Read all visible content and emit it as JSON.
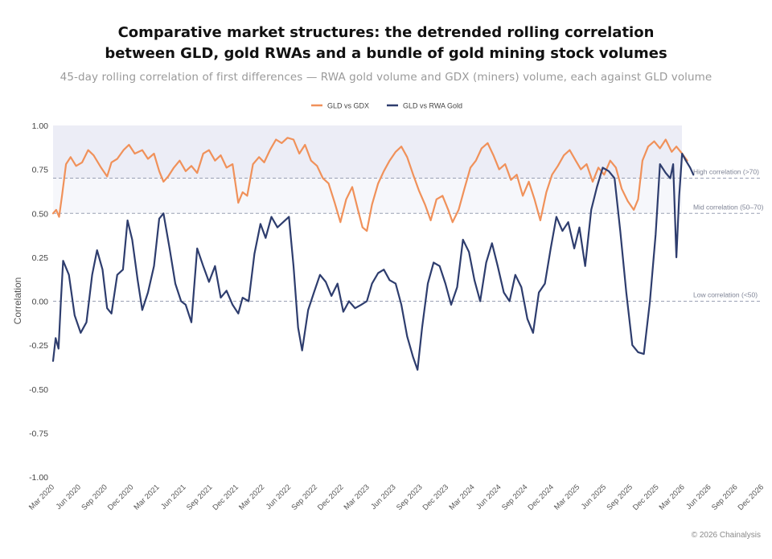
{
  "header": {
    "title": "Comparative market structures: the detrended rolling correlation between GLD, gold RWAs and a bundle of gold mining stock volumes",
    "subtitle": "45-day rolling correlation of first differences — RWA gold volume and GDX (miners) volume, each against GLD volume"
  },
  "footer": {
    "copyright": "© 2026 Chainalysis"
  },
  "colors": {
    "gdx": "#F0915A",
    "rwa": "#2E3D6E",
    "high_band": "#ECEDF6",
    "mid_band": "#F6F7FB",
    "ref_line": "#9AA0B4"
  },
  "chart_data": {
    "type": "line",
    "title": "Comparative market structures: the detrended rolling correlation between GLD, gold RWAs and a bundle of gold mining stock volumes",
    "subtitle": "45-day rolling correlation of first differences — RWA gold volume and GDX (miners) volume, each against GLD volume",
    "xlabel": "",
    "ylabel": "Correlation",
    "ylim": [
      -1.0,
      1.0
    ],
    "yticks": [
      -1.0,
      -0.75,
      -0.5,
      -0.25,
      0.0,
      0.25,
      0.5,
      0.75,
      1.0
    ],
    "ytick_labels": [
      "-1.00",
      "-0.75",
      "-0.50",
      "-0.25",
      "0.00",
      "0.25",
      "0.50",
      "0.75",
      "1.00"
    ],
    "xlim": [
      "2020-03-01",
      "2026-12-01"
    ],
    "xtick_labels": [
      "Mar 2020",
      "Jun 2020",
      "Sep 2020",
      "Dec 2020",
      "Mar 2021",
      "Jun 2021",
      "Sep 2021",
      "Dec 2021",
      "Mar 2022",
      "Jun 2022",
      "Sep 2022",
      "Dec 2022",
      "Mar 2023",
      "Jun 2023",
      "Sep 2023",
      "Dec 2023",
      "Mar 2024",
      "Jun 2024",
      "Sep 2024",
      "Dec 2024",
      "Mar 2025",
      "Jun 2025",
      "Sep 2025",
      "Dec 2025",
      "Mar 2026",
      "Jun 2026",
      "Sep 2026",
      "Dec 2026"
    ],
    "xtick_dates": [
      "2020-03-01",
      "2020-06-01",
      "2020-09-01",
      "2020-12-01",
      "2021-03-01",
      "2021-06-01",
      "2021-09-01",
      "2021-12-01",
      "2022-03-01",
      "2022-06-01",
      "2022-09-01",
      "2022-12-01",
      "2023-03-01",
      "2023-06-01",
      "2023-09-01",
      "2023-12-01",
      "2024-03-01",
      "2024-06-01",
      "2024-09-01",
      "2024-12-01",
      "2025-03-01",
      "2025-06-01",
      "2025-09-01",
      "2025-12-01",
      "2026-03-01",
      "2026-06-01",
      "2026-09-01",
      "2026-12-01"
    ],
    "legend_position": "top-center",
    "grid": false,
    "bands": [
      {
        "from": 0.7,
        "to": 1.0,
        "label": "High correlation (>70)"
      },
      {
        "from": 0.5,
        "to": 0.7,
        "label": "Mid correlation (50–70)"
      }
    ],
    "reference_lines": [
      {
        "y": 0.7,
        "label": "High correlation (>70)"
      },
      {
        "y": 0.5,
        "label": "Mid correlation (50–70)"
      },
      {
        "y": 0.0,
        "label": "Low correlation (<50)"
      }
    ],
    "series": [
      {
        "name": "GLD vs GDX",
        "color": "#F0915A",
        "points": [
          [
            "2020-03-01",
            0.5
          ],
          [
            "2020-03-12",
            0.52
          ],
          [
            "2020-03-22",
            0.48
          ],
          [
            "2020-04-01",
            0.6
          ],
          [
            "2020-04-15",
            0.78
          ],
          [
            "2020-05-01",
            0.82
          ],
          [
            "2020-05-20",
            0.77
          ],
          [
            "2020-06-10",
            0.79
          ],
          [
            "2020-07-01",
            0.86
          ],
          [
            "2020-07-20",
            0.83
          ],
          [
            "2020-08-15",
            0.76
          ],
          [
            "2020-09-05",
            0.71
          ],
          [
            "2020-09-20",
            0.79
          ],
          [
            "2020-10-10",
            0.81
          ],
          [
            "2020-11-01",
            0.86
          ],
          [
            "2020-11-20",
            0.89
          ],
          [
            "2020-12-10",
            0.84
          ],
          [
            "2021-01-05",
            0.86
          ],
          [
            "2021-01-25",
            0.81
          ],
          [
            "2021-02-15",
            0.84
          ],
          [
            "2021-03-05",
            0.74
          ],
          [
            "2021-03-20",
            0.68
          ],
          [
            "2021-04-05",
            0.71
          ],
          [
            "2021-04-25",
            0.76
          ],
          [
            "2021-05-15",
            0.8
          ],
          [
            "2021-06-05",
            0.74
          ],
          [
            "2021-06-25",
            0.77
          ],
          [
            "2021-07-15",
            0.73
          ],
          [
            "2021-08-05",
            0.84
          ],
          [
            "2021-08-25",
            0.86
          ],
          [
            "2021-09-15",
            0.8
          ],
          [
            "2021-10-05",
            0.83
          ],
          [
            "2021-10-25",
            0.76
          ],
          [
            "2021-11-15",
            0.78
          ],
          [
            "2021-12-05",
            0.56
          ],
          [
            "2021-12-20",
            0.62
          ],
          [
            "2022-01-05",
            0.6
          ],
          [
            "2022-01-25",
            0.78
          ],
          [
            "2022-02-15",
            0.82
          ],
          [
            "2022-03-05",
            0.79
          ],
          [
            "2022-03-25",
            0.86
          ],
          [
            "2022-04-15",
            0.92
          ],
          [
            "2022-05-05",
            0.9
          ],
          [
            "2022-05-25",
            0.93
          ],
          [
            "2022-06-15",
            0.92
          ],
          [
            "2022-07-05",
            0.84
          ],
          [
            "2022-07-25",
            0.89
          ],
          [
            "2022-08-15",
            0.8
          ],
          [
            "2022-09-05",
            0.77
          ],
          [
            "2022-09-25",
            0.7
          ],
          [
            "2022-10-15",
            0.67
          ],
          [
            "2022-11-05",
            0.56
          ],
          [
            "2022-11-25",
            0.45
          ],
          [
            "2022-12-15",
            0.58
          ],
          [
            "2023-01-05",
            0.65
          ],
          [
            "2023-01-25",
            0.52
          ],
          [
            "2023-02-10",
            0.42
          ],
          [
            "2023-02-25",
            0.4
          ],
          [
            "2023-03-15",
            0.55
          ],
          [
            "2023-04-05",
            0.67
          ],
          [
            "2023-04-25",
            0.74
          ],
          [
            "2023-05-15",
            0.8
          ],
          [
            "2023-06-05",
            0.85
          ],
          [
            "2023-06-25",
            0.88
          ],
          [
            "2023-07-15",
            0.82
          ],
          [
            "2023-08-05",
            0.72
          ],
          [
            "2023-08-25",
            0.63
          ],
          [
            "2023-09-15",
            0.55
          ],
          [
            "2023-10-05",
            0.46
          ],
          [
            "2023-10-25",
            0.58
          ],
          [
            "2023-11-15",
            0.6
          ],
          [
            "2023-12-05",
            0.52
          ],
          [
            "2023-12-20",
            0.45
          ],
          [
            "2024-01-10",
            0.52
          ],
          [
            "2024-01-30",
            0.64
          ],
          [
            "2024-02-20",
            0.76
          ],
          [
            "2024-03-10",
            0.8
          ],
          [
            "2024-03-30",
            0.87
          ],
          [
            "2024-04-20",
            0.9
          ],
          [
            "2024-05-10",
            0.83
          ],
          [
            "2024-05-30",
            0.75
          ],
          [
            "2024-06-20",
            0.78
          ],
          [
            "2024-07-10",
            0.69
          ],
          [
            "2024-07-30",
            0.72
          ],
          [
            "2024-08-20",
            0.6
          ],
          [
            "2024-09-10",
            0.68
          ],
          [
            "2024-09-30",
            0.58
          ],
          [
            "2024-10-20",
            0.46
          ],
          [
            "2024-11-10",
            0.62
          ],
          [
            "2024-11-30",
            0.72
          ],
          [
            "2024-12-20",
            0.77
          ],
          [
            "2025-01-10",
            0.83
          ],
          [
            "2025-01-30",
            0.86
          ],
          [
            "2025-02-20",
            0.8
          ],
          [
            "2025-03-10",
            0.75
          ],
          [
            "2025-03-30",
            0.78
          ],
          [
            "2025-04-20",
            0.68
          ],
          [
            "2025-05-10",
            0.76
          ],
          [
            "2025-05-30",
            0.72
          ],
          [
            "2025-06-20",
            0.8
          ],
          [
            "2025-07-10",
            0.76
          ],
          [
            "2025-07-30",
            0.64
          ],
          [
            "2025-08-20",
            0.57
          ],
          [
            "2025-09-10",
            0.52
          ],
          [
            "2025-09-25",
            0.58
          ],
          [
            "2025-10-10",
            0.8
          ],
          [
            "2025-10-30",
            0.88
          ],
          [
            "2025-11-20",
            0.91
          ],
          [
            "2025-12-10",
            0.87
          ],
          [
            "2025-12-30",
            0.92
          ],
          [
            "2026-01-20",
            0.85
          ],
          [
            "2026-02-05",
            0.88
          ],
          [
            "2026-02-25",
            0.84
          ],
          [
            "2026-03-15",
            0.8
          ]
        ]
      },
      {
        "name": "GLD vs RWA Gold",
        "color": "#2E3D6E",
        "points": [
          [
            "2020-03-01",
            -0.34
          ],
          [
            "2020-03-10",
            -0.21
          ],
          [
            "2020-03-20",
            -0.27
          ],
          [
            "2020-03-28",
            0.0
          ],
          [
            "2020-04-05",
            0.23
          ],
          [
            "2020-04-25",
            0.15
          ],
          [
            "2020-05-15",
            -0.08
          ],
          [
            "2020-06-05",
            -0.18
          ],
          [
            "2020-06-25",
            -0.12
          ],
          [
            "2020-07-15",
            0.15
          ],
          [
            "2020-08-01",
            0.29
          ],
          [
            "2020-08-20",
            0.18
          ],
          [
            "2020-09-05",
            -0.04
          ],
          [
            "2020-09-20",
            -0.07
          ],
          [
            "2020-10-10",
            0.15
          ],
          [
            "2020-10-30",
            0.18
          ],
          [
            "2020-11-15",
            0.46
          ],
          [
            "2020-12-01",
            0.35
          ],
          [
            "2020-12-20",
            0.12
          ],
          [
            "2021-01-05",
            -0.05
          ],
          [
            "2021-01-25",
            0.05
          ],
          [
            "2021-02-15",
            0.2
          ],
          [
            "2021-03-05",
            0.47
          ],
          [
            "2021-03-20",
            0.5
          ],
          [
            "2021-04-10",
            0.3
          ],
          [
            "2021-04-30",
            0.1
          ],
          [
            "2021-05-20",
            0.0
          ],
          [
            "2021-06-05",
            -0.02
          ],
          [
            "2021-06-25",
            -0.12
          ],
          [
            "2021-07-15",
            0.3
          ],
          [
            "2021-08-05",
            0.2
          ],
          [
            "2021-08-25",
            0.11
          ],
          [
            "2021-09-15",
            0.2
          ],
          [
            "2021-10-05",
            0.02
          ],
          [
            "2021-10-25",
            0.06
          ],
          [
            "2021-11-15",
            -0.02
          ],
          [
            "2021-12-05",
            -0.07
          ],
          [
            "2021-12-20",
            0.02
          ],
          [
            "2022-01-10",
            0.0
          ],
          [
            "2022-01-30",
            0.27
          ],
          [
            "2022-02-20",
            0.44
          ],
          [
            "2022-03-10",
            0.36
          ],
          [
            "2022-03-30",
            0.48
          ],
          [
            "2022-04-20",
            0.42
          ],
          [
            "2022-05-10",
            0.45
          ],
          [
            "2022-05-30",
            0.48
          ],
          [
            "2022-06-15",
            0.2
          ],
          [
            "2022-07-01",
            -0.15
          ],
          [
            "2022-07-15",
            -0.28
          ],
          [
            "2022-08-05",
            -0.05
          ],
          [
            "2022-08-25",
            0.05
          ],
          [
            "2022-09-15",
            0.15
          ],
          [
            "2022-10-05",
            0.11
          ],
          [
            "2022-10-25",
            0.03
          ],
          [
            "2022-11-15",
            0.1
          ],
          [
            "2022-12-05",
            -0.06
          ],
          [
            "2022-12-25",
            0.0
          ],
          [
            "2023-01-15",
            -0.04
          ],
          [
            "2023-02-05",
            -0.02
          ],
          [
            "2023-02-25",
            0.0
          ],
          [
            "2023-03-15",
            0.1
          ],
          [
            "2023-04-05",
            0.16
          ],
          [
            "2023-04-25",
            0.18
          ],
          [
            "2023-05-15",
            0.12
          ],
          [
            "2023-06-05",
            0.1
          ],
          [
            "2023-06-25",
            -0.02
          ],
          [
            "2023-07-15",
            -0.2
          ],
          [
            "2023-08-05",
            -0.32
          ],
          [
            "2023-08-20",
            -0.39
          ],
          [
            "2023-09-05",
            -0.15
          ],
          [
            "2023-09-25",
            0.1
          ],
          [
            "2023-10-15",
            0.22
          ],
          [
            "2023-11-05",
            0.2
          ],
          [
            "2023-11-25",
            0.1
          ],
          [
            "2023-12-15",
            -0.02
          ],
          [
            "2024-01-05",
            0.08
          ],
          [
            "2024-01-25",
            0.35
          ],
          [
            "2024-02-15",
            0.28
          ],
          [
            "2024-03-05",
            0.12
          ],
          [
            "2024-03-25",
            0.0
          ],
          [
            "2024-04-15",
            0.22
          ],
          [
            "2024-05-05",
            0.33
          ],
          [
            "2024-05-25",
            0.2
          ],
          [
            "2024-06-15",
            0.05
          ],
          [
            "2024-07-05",
            0.0
          ],
          [
            "2024-07-25",
            0.15
          ],
          [
            "2024-08-15",
            0.08
          ],
          [
            "2024-09-05",
            -0.1
          ],
          [
            "2024-09-25",
            -0.18
          ],
          [
            "2024-10-15",
            0.05
          ],
          [
            "2024-11-05",
            0.1
          ],
          [
            "2024-11-25",
            0.3
          ],
          [
            "2024-12-15",
            0.48
          ],
          [
            "2025-01-05",
            0.4
          ],
          [
            "2025-01-25",
            0.45
          ],
          [
            "2025-02-15",
            0.3
          ],
          [
            "2025-03-05",
            0.42
          ],
          [
            "2025-03-25",
            0.2
          ],
          [
            "2025-04-15",
            0.52
          ],
          [
            "2025-05-05",
            0.65
          ],
          [
            "2025-05-25",
            0.76
          ],
          [
            "2025-06-15",
            0.74
          ],
          [
            "2025-07-05",
            0.7
          ],
          [
            "2025-07-25",
            0.4
          ],
          [
            "2025-08-15",
            0.05
          ],
          [
            "2025-09-05",
            -0.25
          ],
          [
            "2025-09-25",
            -0.29
          ],
          [
            "2025-10-15",
            -0.3
          ],
          [
            "2025-11-05",
            0.0
          ],
          [
            "2025-11-25",
            0.38
          ],
          [
            "2025-12-10",
            0.78
          ],
          [
            "2025-12-30",
            0.73
          ],
          [
            "2026-01-15",
            0.7
          ],
          [
            "2026-01-25",
            0.78
          ],
          [
            "2026-02-05",
            0.25
          ],
          [
            "2026-02-15",
            0.6
          ],
          [
            "2026-02-25",
            0.84
          ],
          [
            "2026-03-10",
            0.8
          ],
          [
            "2026-03-25",
            0.76
          ],
          [
            "2026-04-05",
            0.72
          ]
        ]
      }
    ]
  }
}
